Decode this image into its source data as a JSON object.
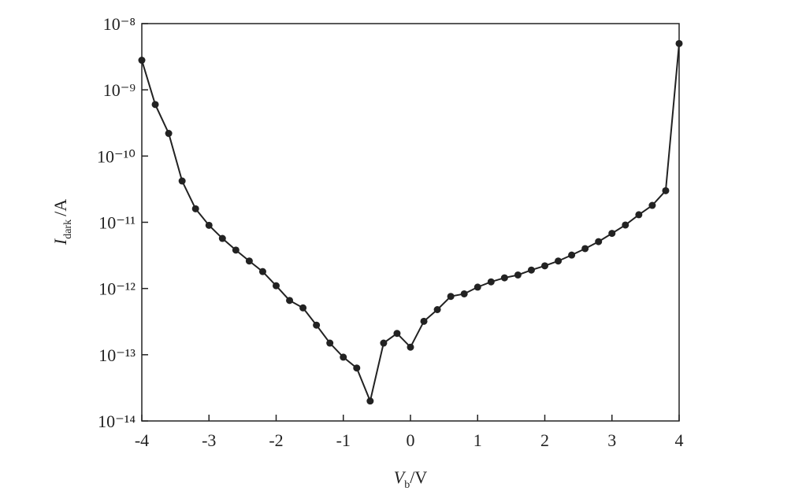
{
  "chart_data": {
    "type": "line",
    "y_label": {
      "symbol": "I",
      "subscript": "dark",
      "unit": "/A"
    },
    "x_label": {
      "symbol": "V",
      "subscript": "b",
      "unit": "/V"
    },
    "log_y": true,
    "color": "#222222",
    "x": [
      -4,
      -3.8,
      -3.6,
      -3.4,
      -3.2,
      -3,
      -2.8,
      -2.6,
      -2.4,
      -2.2,
      -2,
      -1.8,
      -1.6,
      -1.4,
      -1.2,
      -1,
      -0.8,
      -0.6,
      -0.4,
      -0.2,
      0,
      0.2,
      0.4,
      0.6,
      0.8,
      1,
      1.2,
      1.4,
      1.6,
      1.8,
      2,
      2.2,
      2.4,
      2.6,
      2.8,
      3,
      3.2,
      3.4,
      3.6,
      3.8,
      4
    ],
    "values": [
      2.8e-09,
      6e-10,
      2.2e-10,
      4.2e-11,
      1.6e-11,
      9e-12,
      5.7e-12,
      3.8e-12,
      2.6e-12,
      1.8e-12,
      1.1e-12,
      6.6e-13,
      5.1e-13,
      2.8e-13,
      1.5e-13,
      9.2e-14,
      6.3e-14,
      2e-14,
      1.5e-13,
      2.1e-13,
      1.3e-13,
      3.2e-13,
      4.8e-13,
      7.6e-13,
      8.3e-13,
      1.05e-12,
      1.26e-12,
      1.45e-12,
      1.6e-12,
      1.9e-12,
      2.2e-12,
      2.6e-12,
      3.2e-12,
      4e-12,
      5.1e-12,
      6.8e-12,
      9.1e-12,
      1.3e-11,
      1.8e-11,
      3e-11,
      5e-09
    ],
    "xlim": [
      -4,
      4
    ],
    "xticks": [
      -4,
      -3,
      -2,
      -1,
      0,
      1,
      2,
      3,
      4
    ],
    "ylim": [
      1e-14,
      1e-08
    ],
    "yticks": [
      {
        "value": 1e-14,
        "label": "10⁻¹⁴"
      },
      {
        "value": 1e-13,
        "label": "10⁻¹³"
      },
      {
        "value": 1e-12,
        "label": "10⁻¹²"
      },
      {
        "value": 1e-11,
        "label": "10⁻¹¹"
      },
      {
        "value": 1e-10,
        "label": "10⁻¹⁰"
      },
      {
        "value": 1e-09,
        "label": "10⁻⁹"
      },
      {
        "value": 1e-08,
        "label": "10⁻⁸"
      }
    ]
  }
}
